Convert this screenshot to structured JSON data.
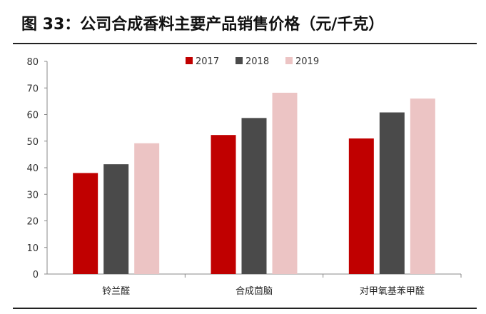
{
  "header": {
    "title": "图 33：公司合成香料主要产品销售价格（元/千克）"
  },
  "colors": {
    "series_2017": "#c00000",
    "series_2018": "#4a4a4a",
    "series_2019": "#ecc4c4",
    "axis": "#888888"
  },
  "chart_data": {
    "type": "bar",
    "title": "",
    "xlabel": "",
    "ylabel": "",
    "categories": [
      "铃兰醛",
      "合成茴脑",
      "对甲氧基苯甲醛"
    ],
    "series": [
      {
        "name": "2017",
        "values": [
          38,
          52.3,
          51
        ]
      },
      {
        "name": "2018",
        "values": [
          41.3,
          58.7,
          60.8
        ]
      },
      {
        "name": "2019",
        "values": [
          49.2,
          68.2,
          66
        ]
      }
    ],
    "ylim": [
      0,
      80
    ],
    "yticks": [
      0,
      10,
      20,
      30,
      40,
      50,
      60,
      70,
      80
    ],
    "grid": false,
    "legend": "top-center"
  }
}
